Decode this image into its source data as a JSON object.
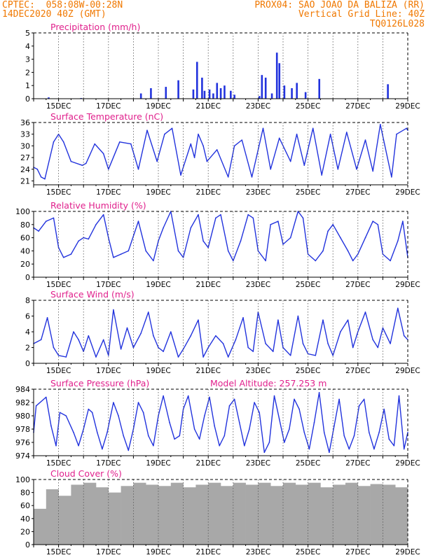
{
  "header": {
    "line1_left": "CPTEC:  058:08W-00:28N",
    "line1_right": "PROX04: SAO JOAO DA BALIZA (RR)",
    "line2_left": "14DEC2020 40Z (GMT)",
    "line2_right": "Vertical Grid Line: 40Z",
    "line3_right": "TQ0126L028",
    "color": "#f07800"
  },
  "colors": {
    "title": "#e0208c",
    "series": "#2233dd",
    "cloud": "#a8a8a8",
    "grid": "#555555"
  },
  "chart_data": [
    {
      "type": "bar",
      "title": "Precipitation (mm/h)",
      "ylim": [
        0,
        5
      ],
      "yticks": [
        0,
        1,
        2,
        3,
        4,
        5
      ],
      "xlim": [
        14.0,
        29.0
      ],
      "xticks": [
        15,
        17,
        19,
        21,
        23,
        25,
        27,
        29
      ],
      "xticklabels": [
        "15DEC",
        "17DEC",
        "19DEC",
        "21DEC",
        "23DEC",
        "25DEC",
        "27DEC",
        "29DEC"
      ],
      "grid": "vertical dotted",
      "x": [
        14.6,
        15.9,
        18.3,
        18.7,
        19.3,
        19.8,
        20.4,
        20.55,
        20.75,
        20.85,
        21.05,
        21.2,
        21.35,
        21.5,
        21.65,
        21.9,
        22.05,
        23.05,
        23.15,
        23.3,
        23.55,
        23.75,
        23.85,
        24.05,
        24.35,
        24.55,
        24.9,
        25.45,
        28.2
      ],
      "values": [
        0.1,
        0.05,
        0.4,
        0.8,
        0.9,
        1.4,
        0.7,
        2.8,
        1.6,
        0.6,
        0.7,
        0.4,
        1.2,
        0.8,
        1.0,
        0.6,
        0.3,
        0.2,
        1.8,
        1.6,
        0.4,
        3.5,
        2.7,
        1.0,
        0.8,
        1.2,
        0.5,
        1.5,
        1.1
      ]
    },
    {
      "type": "line",
      "title": "Surface Temperature (nC)",
      "ylim": [
        20,
        36
      ],
      "yticks": [
        21,
        24,
        27,
        30,
        33,
        36
      ],
      "xlim": [
        14.0,
        29.0
      ],
      "xticks": [
        15,
        17,
        19,
        21,
        23,
        25,
        27,
        29
      ],
      "xticklabels": [
        "15DEC",
        "17DEC",
        "19DEC",
        "21DEC",
        "23DEC",
        "25DEC",
        "27DEC",
        "29DEC"
      ],
      "grid": "vertical dotted",
      "x": [
        14.0,
        14.15,
        14.3,
        14.45,
        14.8,
        15.0,
        15.2,
        15.5,
        15.95,
        16.1,
        16.45,
        16.8,
        17.0,
        17.45,
        17.9,
        18.2,
        18.55,
        18.95,
        19.25,
        19.55,
        19.9,
        20.3,
        20.45,
        20.6,
        20.8,
        20.95,
        21.35,
        21.8,
        22.05,
        22.35,
        22.75,
        23.2,
        23.5,
        23.85,
        24.3,
        24.55,
        24.85,
        25.2,
        25.55,
        25.9,
        26.2,
        26.55,
        26.95,
        27.3,
        27.6,
        27.9,
        28.35,
        28.55,
        28.95,
        29.0
      ],
      "values": [
        24.5,
        24,
        22,
        21.5,
        31,
        33,
        31,
        26,
        25,
        25.5,
        30.5,
        28,
        24,
        31,
        30.5,
        24,
        34,
        26,
        33,
        34.5,
        22.5,
        30.5,
        27,
        33,
        30,
        26,
        29,
        22,
        30,
        31.5,
        22,
        34.5,
        24,
        32,
        26,
        33,
        25,
        34.5,
        22.5,
        33,
        24,
        33.5,
        24,
        31.5,
        23.5,
        35.5,
        22,
        33,
        34.5,
        34
      ]
    },
    {
      "type": "line",
      "title": "Relative Humidity (%)",
      "ylim": [
        0,
        100
      ],
      "yticks": [
        0,
        20,
        40,
        60,
        80,
        100
      ],
      "xlim": [
        14.0,
        29.0
      ],
      "xticks": [
        15,
        17,
        19,
        21,
        23,
        25,
        27,
        29
      ],
      "xticklabels": [
        "15DEC",
        "17DEC",
        "19DEC",
        "21DEC",
        "23DEC",
        "25DEC",
        "27DEC",
        "29DEC"
      ],
      "grid": "vertical dotted",
      "x": [
        14.0,
        14.2,
        14.5,
        14.8,
        15.0,
        15.2,
        15.5,
        15.8,
        16.0,
        16.2,
        16.5,
        16.8,
        17.0,
        17.2,
        17.5,
        17.8,
        18.2,
        18.5,
        18.8,
        19.0,
        19.2,
        19.5,
        19.8,
        20.0,
        20.3,
        20.6,
        20.8,
        21.0,
        21.3,
        21.5,
        21.8,
        22.0,
        22.3,
        22.6,
        22.8,
        23.0,
        23.3,
        23.5,
        23.8,
        24.0,
        24.3,
        24.6,
        24.8,
        25.0,
        25.3,
        25.6,
        25.8,
        26.0,
        26.3,
        26.6,
        26.8,
        27.0,
        27.3,
        27.6,
        27.8,
        28.0,
        28.3,
        28.6,
        28.8,
        29.0
      ],
      "values": [
        75,
        70,
        85,
        90,
        45,
        30,
        35,
        55,
        60,
        58,
        80,
        95,
        60,
        30,
        35,
        40,
        85,
        40,
        25,
        55,
        75,
        100,
        40,
        30,
        75,
        95,
        55,
        45,
        90,
        95,
        40,
        25,
        55,
        95,
        90,
        40,
        25,
        80,
        85,
        50,
        60,
        100,
        90,
        35,
        25,
        40,
        70,
        80,
        60,
        40,
        25,
        35,
        60,
        85,
        80,
        35,
        25,
        55,
        85,
        30
      ]
    },
    {
      "type": "line",
      "title": "Surface Wind (m/s)",
      "ylim": [
        0,
        8
      ],
      "yticks": [
        0,
        2,
        4,
        6,
        8
      ],
      "xlim": [
        14.0,
        29.0
      ],
      "xticks": [
        15,
        17,
        19,
        21,
        23,
        25,
        27,
        29
      ],
      "xticklabels": [
        "15DEC",
        "17DEC",
        "19DEC",
        "21DEC",
        "23DEC",
        "25DEC",
        "27DEC",
        "29DEC"
      ],
      "grid": "vertical dotted",
      "x": [
        14.0,
        14.3,
        14.55,
        14.8,
        15.0,
        15.3,
        15.6,
        15.8,
        16.0,
        16.2,
        16.5,
        16.8,
        17.0,
        17.2,
        17.5,
        17.75,
        18.0,
        18.3,
        18.6,
        18.8,
        19.0,
        19.2,
        19.5,
        19.8,
        20.0,
        20.3,
        20.6,
        20.8,
        21.0,
        21.3,
        21.6,
        21.8,
        22.1,
        22.4,
        22.6,
        22.8,
        23.0,
        23.3,
        23.6,
        23.8,
        24.0,
        24.3,
        24.6,
        24.8,
        25.0,
        25.3,
        25.6,
        25.8,
        26.0,
        26.3,
        26.6,
        26.8,
        27.0,
        27.3,
        27.6,
        27.8,
        28.0,
        28.3,
        28.6,
        28.85,
        29.0
      ],
      "values": [
        2.5,
        3.0,
        5.8,
        2.0,
        1.0,
        0.8,
        4.0,
        3.0,
        1.5,
        3.5,
        0.8,
        3.0,
        1.0,
        6.8,
        1.8,
        4.5,
        2.0,
        3.8,
        6.5,
        3.5,
        2.0,
        1.5,
        4.0,
        0.8,
        1.8,
        3.5,
        5.5,
        0.8,
        2.0,
        3.5,
        2.5,
        0.8,
        3.0,
        5.8,
        2.0,
        1.5,
        6.5,
        2.5,
        1.5,
        5.5,
        2.0,
        1.0,
        6.0,
        2.5,
        1.2,
        1.0,
        5.5,
        2.5,
        1.0,
        4.0,
        5.5,
        2.0,
        4.0,
        6.5,
        3.0,
        2.0,
        4.5,
        2.5,
        7.0,
        3.5,
        3.0
      ]
    },
    {
      "type": "line",
      "title": "Surface Pressure (hPa)",
      "annotation": "Model Altitude: 257.253 m",
      "ylim": [
        974,
        984
      ],
      "yticks": [
        974,
        976,
        978,
        980,
        982,
        984
      ],
      "xlim": [
        14.0,
        29.0
      ],
      "xticks": [
        15,
        17,
        19,
        21,
        23,
        25,
        27,
        29
      ],
      "xticklabels": [
        "15DEC",
        "17DEC",
        "19DEC",
        "21DEC",
        "23DEC",
        "25DEC",
        "27DEC",
        "29DEC"
      ],
      "grid": "vertical dotted",
      "x": [
        14.0,
        14.1,
        14.5,
        14.7,
        14.9,
        15.05,
        15.3,
        15.6,
        15.8,
        16.0,
        16.2,
        16.35,
        16.55,
        16.75,
        16.95,
        17.2,
        17.4,
        17.6,
        17.8,
        18.0,
        18.2,
        18.4,
        18.6,
        18.8,
        19.0,
        19.2,
        19.45,
        19.65,
        19.85,
        20.0,
        20.2,
        20.45,
        20.65,
        20.85,
        21.05,
        21.25,
        21.45,
        21.65,
        21.85,
        22.05,
        22.25,
        22.45,
        22.65,
        22.85,
        23.05,
        23.25,
        23.45,
        23.65,
        23.85,
        24.05,
        24.25,
        24.45,
        24.65,
        24.85,
        25.05,
        25.25,
        25.45,
        25.65,
        25.85,
        26.05,
        26.25,
        26.45,
        26.65,
        26.85,
        27.05,
        27.25,
        27.45,
        27.65,
        27.85,
        28.05,
        28.25,
        28.45,
        28.65,
        28.85,
        29.0
      ],
      "values": [
        977.5,
        981.5,
        982.8,
        978.5,
        975.5,
        980.5,
        980.0,
        977.5,
        975.5,
        978.0,
        981.0,
        980.5,
        977.5,
        975.0,
        977.5,
        982.0,
        980.0,
        977.0,
        974.8,
        978.0,
        982.0,
        980.5,
        977.0,
        975.5,
        980.0,
        983.0,
        979.0,
        976.5,
        977.0,
        981.0,
        983.0,
        978.0,
        976.5,
        980.0,
        982.8,
        978.5,
        975.5,
        977.0,
        981.5,
        982.5,
        979.0,
        975.5,
        978.0,
        982.0,
        980.5,
        974.5,
        976.0,
        983.0,
        979.5,
        976.0,
        978.0,
        982.5,
        981.0,
        977.5,
        975.0,
        979.0,
        983.5,
        977.5,
        974.5,
        978.5,
        982.5,
        977.0,
        975.0,
        977.0,
        981.5,
        982.5,
        977.5,
        975.0,
        977.5,
        981.0,
        976.5,
        975.5,
        983.0,
        975.0,
        977.5
      ]
    },
    {
      "type": "bar",
      "title": "Cloud Cover (%)",
      "ylim": [
        0,
        100
      ],
      "yticks": [
        0,
        20,
        40,
        60,
        80,
        100
      ],
      "xlim": [
        14.0,
        29.0
      ],
      "xticks": [
        15,
        17,
        19,
        21,
        23,
        25,
        27,
        29
      ],
      "xticklabels": [
        "15DEC",
        "17DEC",
        "19DEC",
        "21DEC",
        "23DEC",
        "25DEC",
        "27DEC",
        "29DEC"
      ],
      "grid": "vertical dotted",
      "x": [
        14.0,
        14.5,
        15.0,
        15.5,
        16.0,
        16.5,
        17.0,
        17.5,
        18.0,
        18.5,
        19.0,
        19.5,
        20.0,
        20.5,
        21.0,
        21.5,
        22.0,
        22.5,
        23.0,
        23.5,
        24.0,
        24.5,
        25.0,
        25.5,
        26.0,
        26.5,
        27.0,
        27.5,
        28.0,
        28.5
      ],
      "values": [
        55,
        85,
        75,
        92,
        95,
        88,
        80,
        90,
        95,
        92,
        90,
        95,
        88,
        92,
        95,
        90,
        95,
        92,
        95,
        90,
        95,
        92,
        95,
        88,
        92,
        95,
        90,
        93,
        92,
        88
      ]
    }
  ]
}
